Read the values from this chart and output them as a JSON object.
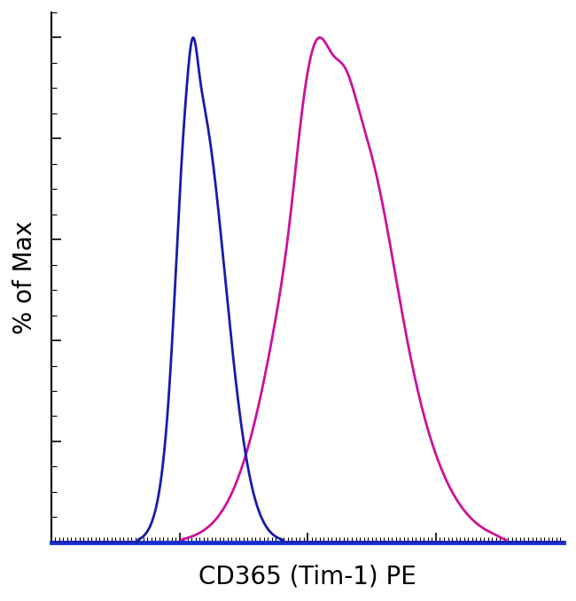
{
  "title": "",
  "xlabel": "CD365 (Tim-1) PE",
  "ylabel": "% of Max",
  "xlabel_fontsize": 20,
  "ylabel_fontsize": 20,
  "background_color": "#ffffff",
  "plot_bg_color": "#ffffff",
  "blue_color": "#1a1aaa",
  "magenta_color": "#cc1199",
  "line_width": 2.0,
  "xlim": [
    0,
    1023
  ],
  "ylim": [
    0,
    1.05
  ],
  "figsize": [
    6.5,
    6.78
  ],
  "dpi": 100
}
